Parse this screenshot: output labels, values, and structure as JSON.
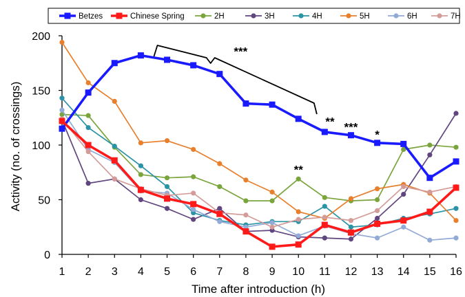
{
  "chart_data": {
    "type": "line",
    "xlabel": "Time after introduction (h)",
    "ylabel": "Activity (no. of crossings)",
    "xlim": [
      1,
      16
    ],
    "ylim": [
      0,
      200
    ],
    "x": [
      1,
      2,
      3,
      4,
      5,
      6,
      7,
      8,
      9,
      10,
      11,
      12,
      13,
      14,
      15,
      16
    ],
    "xticks": [
      "1",
      "2",
      "3",
      "4",
      "5",
      "6",
      "7",
      "8",
      "9",
      "10",
      "11",
      "12",
      "13",
      "14",
      "15",
      "16"
    ],
    "yticks": [
      "0",
      "50",
      "100",
      "150",
      "200"
    ],
    "grid": false,
    "legend_position": "top",
    "series": [
      {
        "name": "Betzes",
        "color": "#1a1aff",
        "marker": "square",
        "bold": true,
        "values": [
          115,
          148,
          175,
          182,
          178,
          173,
          165,
          138,
          137,
          124,
          112,
          109,
          102,
          101,
          70,
          85
        ]
      },
      {
        "name": "Chinese Spring",
        "color": "#ff1a1a",
        "marker": "square",
        "bold": true,
        "values": [
          122,
          100,
          86,
          59,
          51,
          46,
          37,
          21,
          7,
          9,
          27,
          20,
          28,
          31,
          39,
          61
        ]
      },
      {
        "name": "2H",
        "color": "#7aa53c",
        "marker": "circle",
        "bold": false,
        "values": [
          128,
          127,
          98,
          73,
          70,
          71,
          62,
          49,
          49,
          69,
          52,
          49,
          50,
          96,
          100,
          98
        ]
      },
      {
        "name": "3H",
        "color": "#60457f",
        "marker": "circle",
        "bold": false,
        "values": [
          123,
          65,
          69,
          50,
          42,
          32,
          42,
          21,
          22,
          16,
          15,
          14,
          33,
          55,
          91,
          129
        ]
      },
      {
        "name": "4H",
        "color": "#2a93a6",
        "marker": "circle",
        "bold": false,
        "values": [
          143,
          116,
          99,
          81,
          62,
          38,
          31,
          27,
          30,
          30,
          44,
          25,
          27,
          33,
          37,
          42
        ]
      },
      {
        "name": "5H",
        "color": "#e87f2c",
        "marker": "circle",
        "bold": false,
        "values": [
          194,
          157,
          140,
          102,
          104,
          96,
          83,
          68,
          57,
          39,
          33,
          51,
          60,
          64,
          56,
          31
        ]
      },
      {
        "name": "6H",
        "color": "#92aad6",
        "marker": "circle",
        "bold": false,
        "values": [
          132,
          96,
          84,
          58,
          56,
          41,
          30,
          25,
          29,
          17,
          26,
          19,
          15,
          25,
          13,
          15
        ]
      },
      {
        "name": "7H",
        "color": "#d49c98",
        "marker": "circle",
        "bold": false,
        "values": [
          124,
          94,
          69,
          60,
          54,
          56,
          38,
          36,
          25,
          32,
          34,
          31,
          40,
          62,
          57,
          62
        ]
      }
    ],
    "annotations": [
      {
        "text": "***",
        "x": 7.8,
        "y": 182
      },
      {
        "text": "**",
        "x": 11.2,
        "y": 118
      },
      {
        "text": "***",
        "x": 12,
        "y": 113
      },
      {
        "text": "*",
        "x": 13,
        "y": 106
      },
      {
        "text": "**",
        "x": 10,
        "y": 74
      }
    ],
    "bracket": {
      "x_start": 4.5,
      "x_end": 10.7,
      "label": "***"
    }
  }
}
